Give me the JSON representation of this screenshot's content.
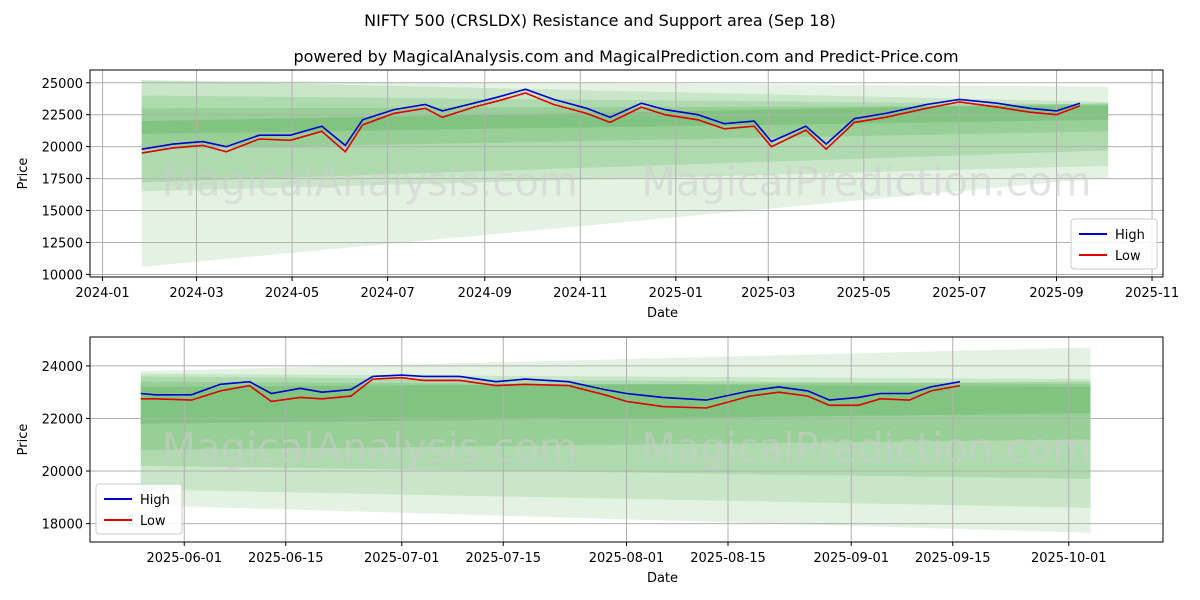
{
  "title": "NIFTY 500 (CRSLDX) Resistance and Support area (Sep 18)",
  "subtitle": "powered by MagicalAnalysis.com and MagicalPrediction.com and Predict-Price.com",
  "watermark": "MagicalAnalysis.com     MagicalPrediction.com",
  "colors": {
    "high": "#0000cc",
    "low": "#e00000",
    "band": "#2e9e2e",
    "grid": "#b0b0b0",
    "watermark": "#cccccc"
  },
  "chart_data": [
    {
      "type": "line",
      "xlabel": "Date",
      "ylabel": "Price",
      "grid": true,
      "legend_position": "bottom-right",
      "xlim": [
        "2023-12-24",
        "2025-11-08"
      ],
      "ylim": [
        9800,
        26000
      ],
      "x_ticks": [
        "2024-01",
        "2024-03",
        "2024-05",
        "2024-07",
        "2024-09",
        "2024-11",
        "2025-01",
        "2025-03",
        "2025-05",
        "2025-07",
        "2025-09",
        "2025-11"
      ],
      "y_ticks": [
        "10000",
        "12500",
        "15000",
        "17500",
        "20000",
        "22500",
        "25000"
      ],
      "series": [
        {
          "name": "High",
          "x": [
            "2024-01-26",
            "2024-02-15",
            "2024-03-05",
            "2024-03-20",
            "2024-04-10",
            "2024-04-30",
            "2024-05-20",
            "2024-06-04",
            "2024-06-15",
            "2024-07-05",
            "2024-07-25",
            "2024-08-05",
            "2024-08-25",
            "2024-09-10",
            "2024-09-27",
            "2024-10-15",
            "2024-11-05",
            "2024-11-20",
            "2024-12-10",
            "2024-12-25",
            "2025-01-15",
            "2025-02-01",
            "2025-02-20",
            "2025-03-03",
            "2025-03-25",
            "2025-04-07",
            "2025-04-25",
            "2025-05-15",
            "2025-06-10",
            "2025-07-01",
            "2025-07-25",
            "2025-08-15",
            "2025-09-01",
            "2025-09-16"
          ],
          "values": [
            19800,
            20200,
            20400,
            20000,
            20900,
            20900,
            21600,
            20100,
            22100,
            22900,
            23300,
            22800,
            23400,
            23900,
            24500,
            23700,
            23000,
            22300,
            23400,
            22900,
            22500,
            21800,
            22000,
            20400,
            21600,
            20200,
            22200,
            22600,
            23300,
            23700,
            23400,
            23000,
            22800,
            23400
          ]
        },
        {
          "name": "Low",
          "x": [
            "2024-01-26",
            "2024-02-15",
            "2024-03-05",
            "2024-03-20",
            "2024-04-10",
            "2024-04-30",
            "2024-05-20",
            "2024-06-04",
            "2024-06-15",
            "2024-07-05",
            "2024-07-25",
            "2024-08-05",
            "2024-08-25",
            "2024-09-10",
            "2024-09-27",
            "2024-10-15",
            "2024-11-05",
            "2024-11-20",
            "2024-12-10",
            "2024-12-25",
            "2025-01-15",
            "2025-02-01",
            "2025-02-20",
            "2025-03-03",
            "2025-03-25",
            "2025-04-07",
            "2025-04-25",
            "2025-05-15",
            "2025-06-10",
            "2025-07-01",
            "2025-07-25",
            "2025-08-15",
            "2025-09-01",
            "2025-09-16"
          ],
          "values": [
            19500,
            19900,
            20100,
            19600,
            20600,
            20500,
            21200,
            19600,
            21700,
            22600,
            23000,
            22300,
            23100,
            23600,
            24200,
            23300,
            22600,
            21900,
            23100,
            22500,
            22100,
            21400,
            21600,
            20000,
            21300,
            19800,
            21900,
            22300,
            23000,
            23500,
            23100,
            22700,
            22500,
            23200
          ]
        }
      ],
      "bands": [
        {
          "x": [
            "2024-01-26",
            "2025-10-04"
          ],
          "upper": [
            25200,
            24700
          ],
          "lower": [
            10600,
            17600
          ]
        },
        {
          "x": [
            "2024-01-26",
            "2025-10-04"
          ],
          "upper": [
            25200,
            23500
          ],
          "lower": [
            16500,
            18500
          ]
        },
        {
          "x": [
            "2024-01-26",
            "2025-10-04"
          ],
          "upper": [
            24000,
            23300
          ],
          "lower": [
            17200,
            19700
          ]
        },
        {
          "x": [
            "2024-01-26",
            "2025-10-04"
          ],
          "upper": [
            23000,
            23200
          ],
          "lower": [
            19800,
            21200
          ]
        },
        {
          "x": [
            "2024-01-26",
            "2025-10-04"
          ],
          "upper": [
            22000,
            23400
          ],
          "lower": [
            21000,
            22100
          ]
        }
      ]
    },
    {
      "type": "line",
      "xlabel": "Date",
      "ylabel": "Price",
      "grid": true,
      "legend_position": "bottom-left",
      "xlim": [
        "2025-05-19",
        "2025-10-14"
      ],
      "ylim": [
        17300,
        25100
      ],
      "x_ticks": [
        "2025-06-01",
        "2025-06-15",
        "2025-07-01",
        "2025-07-15",
        "2025-08-01",
        "2025-08-15",
        "2025-09-01",
        "2025-09-15",
        "2025-10-01"
      ],
      "y_ticks": [
        "18000",
        "20000",
        "22000",
        "24000"
      ],
      "series": [
        {
          "name": "High",
          "x": [
            "2025-05-26",
            "2025-05-28",
            "2025-06-02",
            "2025-06-06",
            "2025-06-10",
            "2025-06-13",
            "2025-06-17",
            "2025-06-20",
            "2025-06-24",
            "2025-06-27",
            "2025-07-01",
            "2025-07-04",
            "2025-07-09",
            "2025-07-14",
            "2025-07-18",
            "2025-07-24",
            "2025-07-29",
            "2025-08-01",
            "2025-08-06",
            "2025-08-12",
            "2025-08-18",
            "2025-08-22",
            "2025-08-26",
            "2025-08-29",
            "2025-09-02",
            "2025-09-05",
            "2025-09-09",
            "2025-09-12",
            "2025-09-16"
          ],
          "values": [
            22950,
            22900,
            22900,
            23300,
            23400,
            22950,
            23150,
            23000,
            23100,
            23600,
            23650,
            23600,
            23600,
            23400,
            23500,
            23400,
            23100,
            22950,
            22800,
            22700,
            23050,
            23200,
            23050,
            22700,
            22800,
            22950,
            22950,
            23200,
            23400
          ]
        },
        {
          "name": "Low",
          "x": [
            "2025-05-26",
            "2025-05-28",
            "2025-06-02",
            "2025-06-06",
            "2025-06-10",
            "2025-06-13",
            "2025-06-17",
            "2025-06-20",
            "2025-06-24",
            "2025-06-27",
            "2025-07-01",
            "2025-07-04",
            "2025-07-09",
            "2025-07-14",
            "2025-07-18",
            "2025-07-24",
            "2025-07-29",
            "2025-08-01",
            "2025-08-06",
            "2025-08-12",
            "2025-08-18",
            "2025-08-22",
            "2025-08-26",
            "2025-08-29",
            "2025-09-02",
            "2025-09-05",
            "2025-09-09",
            "2025-09-12",
            "2025-09-16"
          ],
          "values": [
            22750,
            22750,
            22700,
            23050,
            23250,
            22650,
            22800,
            22750,
            22850,
            23500,
            23550,
            23450,
            23450,
            23250,
            23300,
            23250,
            22900,
            22650,
            22450,
            22400,
            22850,
            23000,
            22850,
            22500,
            22500,
            22750,
            22700,
            23050,
            23250
          ]
        }
      ],
      "bands": [
        {
          "x": [
            "2025-05-26",
            "2025-10-04"
          ],
          "upper": [
            23800,
            24700
          ],
          "lower": [
            18700,
            17650
          ]
        },
        {
          "x": [
            "2025-05-26",
            "2025-10-04"
          ],
          "upper": [
            23700,
            23500
          ],
          "lower": [
            19300,
            18600
          ]
        },
        {
          "x": [
            "2025-05-26",
            "2025-10-04"
          ],
          "upper": [
            23600,
            23300
          ],
          "lower": [
            20200,
            19700
          ]
        },
        {
          "x": [
            "2025-05-26",
            "2025-10-04"
          ],
          "upper": [
            23400,
            23200
          ],
          "lower": [
            20800,
            21200
          ]
        },
        {
          "x": [
            "2025-05-26",
            "2025-10-04"
          ],
          "upper": [
            23200,
            23400
          ],
          "lower": [
            21800,
            22200
          ]
        }
      ]
    }
  ]
}
